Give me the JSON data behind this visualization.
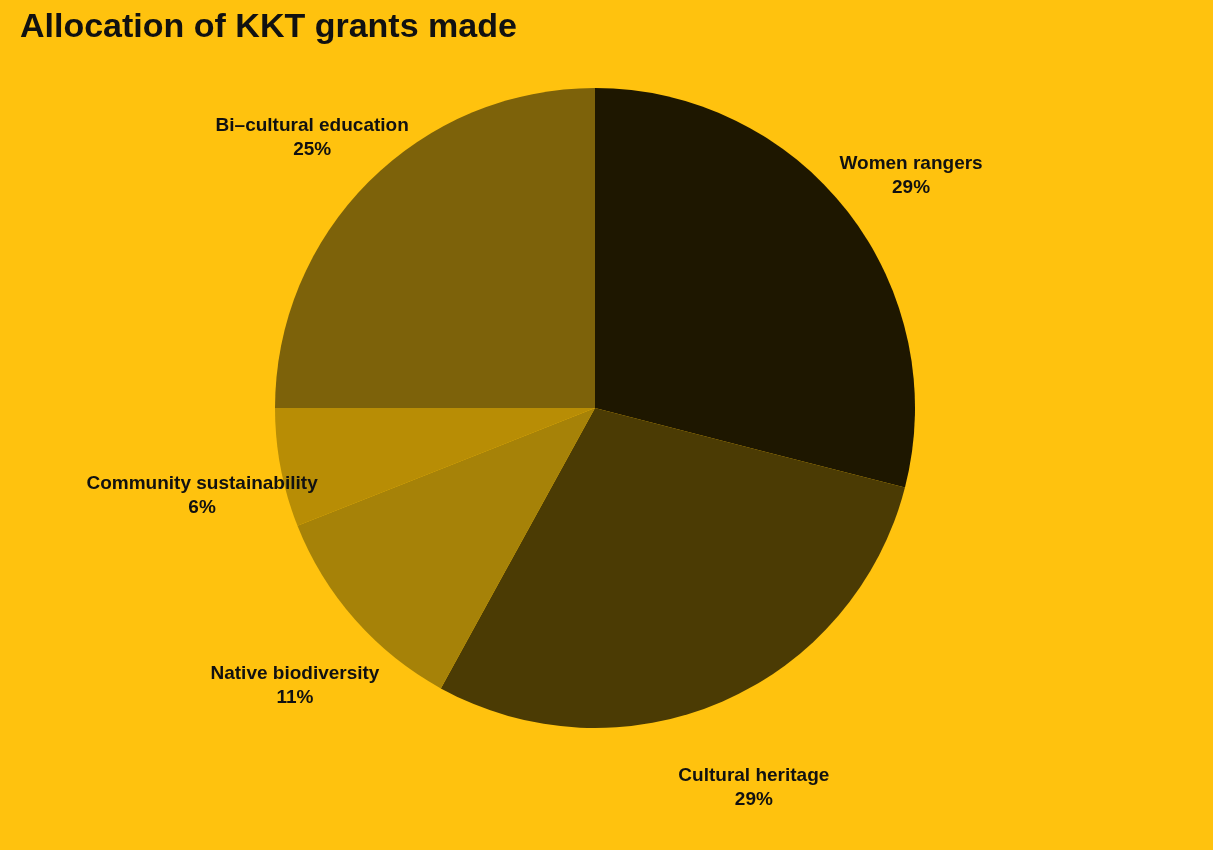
{
  "chart_data": {
    "type": "pie",
    "title": "Allocation of KKT grants made",
    "categories": [
      "Women rangers",
      "Cultural heritage",
      "Native biodiversity",
      "Community sustainability",
      "Bi–cultural education"
    ],
    "values": [
      29,
      29,
      11,
      6,
      25
    ],
    "value_labels": [
      "29%",
      "29%",
      "11%",
      "6%",
      "25%"
    ],
    "colors": [
      "#1e1700",
      "#4b3b04",
      "#a68208",
      "#b88d05",
      "#7d620a"
    ],
    "legend": false
  }
}
